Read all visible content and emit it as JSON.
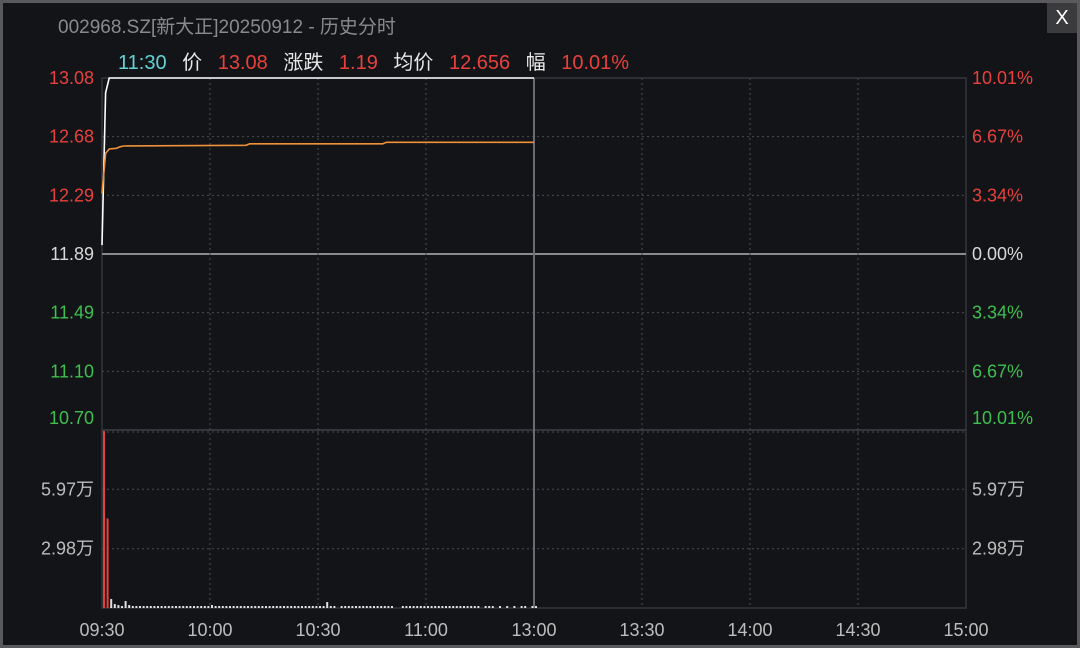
{
  "window": {
    "title": "002968.SZ[新大正]20250912 - 历史分时",
    "close_label": "X"
  },
  "info_bar": {
    "time": "11:30",
    "price_label": "价",
    "price": "13.08",
    "change_label": "涨跌",
    "change": "1.19",
    "avg_label": "均价",
    "avg": "12.656",
    "pct_label": "幅",
    "pct": "10.01%"
  },
  "colors": {
    "up": "#e8413d",
    "down": "#3fbf4f",
    "price_line": "#ffffff",
    "avg_line": "#f0913a",
    "time": "#5fd3d6"
  },
  "chart_data": [
    {
      "type": "line",
      "y_left_ticks": [
        "13.08",
        "12.68",
        "12.29",
        "11.89",
        "11.49",
        "11.10",
        "10.70"
      ],
      "y_right_ticks": [
        "10.01%",
        "6.67%",
        "3.34%",
        "0.00%",
        "3.34%",
        "6.67%",
        "10.01%"
      ],
      "ylim": [
        10.7,
        13.08
      ],
      "prev_close": 11.89,
      "x_ticks": [
        "09:30",
        "10:00",
        "10:30",
        "11:00",
        "13:00",
        "13:30",
        "14:00",
        "14:30",
        "15:00"
      ],
      "series": [
        {
          "key": "price",
          "points": [
            [
              0,
              11.95
            ],
            [
              1,
              12.98
            ],
            [
              2,
              13.08
            ],
            [
              120,
              13.08
            ]
          ]
        },
        {
          "key": "avg",
          "points": [
            [
              0,
              12.3
            ],
            [
              1,
              12.57
            ],
            [
              2,
              12.6
            ],
            [
              4,
              12.605
            ],
            [
              5,
              12.615
            ],
            [
              6,
              12.62
            ],
            [
              40,
              12.625
            ],
            [
              41,
              12.635
            ],
            [
              78,
              12.635
            ],
            [
              79,
              12.645
            ],
            [
              120,
              12.645
            ]
          ]
        }
      ],
      "grid": true
    },
    {
      "type": "bar",
      "unit": "万",
      "y_ticks": [
        "5.97万",
        "2.98万"
      ],
      "y_tick_values": [
        5.97,
        2.98
      ],
      "ylim": [
        0,
        8.95
      ],
      "values": [
        8.9,
        4.5,
        0.45,
        0.2,
        0.15,
        0.1,
        0.35,
        0.15,
        0.1,
        0.1,
        0.1,
        0.1,
        0.1,
        0.1,
        0.1,
        0.1,
        0.1,
        0.1,
        0.1,
        0.1,
        0.1,
        0.1,
        0.1,
        0.1,
        0.1,
        0.1,
        0.1,
        0.1,
        0.1,
        0.1,
        0.15,
        0.1,
        0.1,
        0.1,
        0.1,
        0.1,
        0.1,
        0.1,
        0.1,
        0.1,
        0.1,
        0.1,
        0.1,
        0.1,
        0.1,
        0.1,
        0.1,
        0.1,
        0.1,
        0.1,
        0.1,
        0.1,
        0.1,
        0.1,
        0.1,
        0.1,
        0.1,
        0.1,
        0.1,
        0.1,
        0.1,
        0.1,
        0.3,
        0.1,
        0.1,
        0,
        0.1,
        0.1,
        0.1,
        0.1,
        0.1,
        0.1,
        0.1,
        0.1,
        0.1,
        0.1,
        0.1,
        0.1,
        0.1,
        0.1,
        0.1,
        0,
        0,
        0.1,
        0.1,
        0.1,
        0.1,
        0.1,
        0.1,
        0.1,
        0.1,
        0.1,
        0.1,
        0.1,
        0.1,
        0.1,
        0.1,
        0.1,
        0.1,
        0.1,
        0.1,
        0.1,
        0.1,
        0.1,
        0.1,
        0,
        0.1,
        0.1,
        0.1,
        0,
        0.1,
        0,
        0.1,
        0,
        0.1,
        0,
        0.1,
        0.1,
        0,
        0.1,
        0.1
      ],
      "colors": [
        "up",
        "up"
      ]
    }
  ]
}
